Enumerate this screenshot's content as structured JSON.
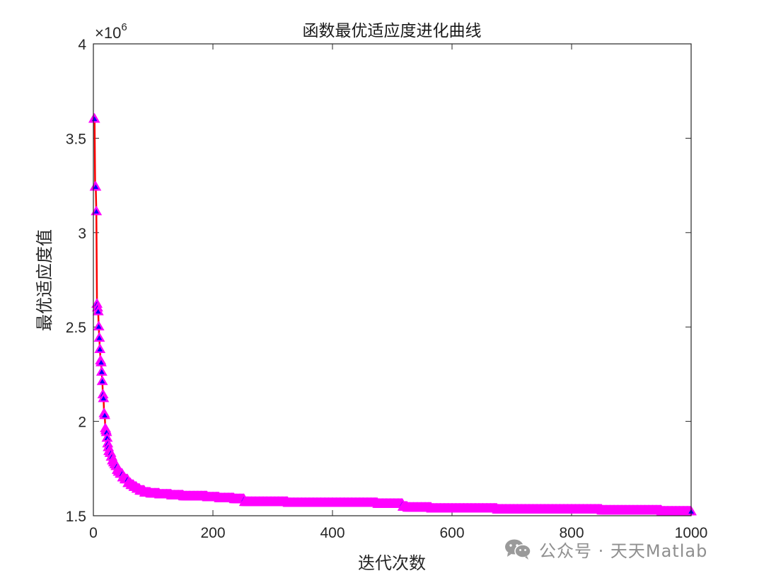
{
  "chart_data": {
    "type": "line",
    "title": "函数最优适应度进化曲线",
    "xlabel": "迭代次数",
    "ylabel": "最优适应度值",
    "exponent_label": "×10^6",
    "exponent_base": "×10",
    "exponent_power": "6",
    "xlim": [
      0,
      1000
    ],
    "ylim": [
      1.5,
      4
    ],
    "xticks": [
      0,
      200,
      400,
      600,
      800,
      1000
    ],
    "xtick_labels": [
      "0",
      "200",
      "400",
      "600",
      "800",
      "1000"
    ],
    "yticks": [
      1.5,
      2,
      2.5,
      3,
      3.5,
      4
    ],
    "ytick_labels": [
      "1.5",
      "2",
      "2.5",
      "3",
      "3.5",
      "4"
    ],
    "grid": false,
    "series": [
      {
        "name": "",
        "line_color": "#ff0000",
        "marker": "triangle",
        "marker_edge_color": "#ff00ff",
        "marker_face_color": "#0000ff",
        "x": [
          1,
          2,
          3,
          4,
          5,
          6,
          7,
          8,
          9,
          10,
          11,
          12,
          13,
          14,
          15,
          16,
          17,
          18,
          19,
          20,
          21,
          22,
          23,
          24,
          25,
          26,
          28,
          30,
          32,
          34,
          36,
          38,
          40,
          43,
          46,
          50,
          55,
          60,
          65,
          70,
          75,
          80,
          90,
          100,
          120,
          140,
          160,
          180,
          200,
          220,
          250,
          255,
          300,
          350,
          400,
          450,
          500,
          515,
          520,
          530,
          600,
          650,
          700,
          800,
          900,
          1000
        ],
        "y": [
          3.6,
          3.6,
          3.24,
          3.24,
          3.11,
          2.62,
          2.6,
          2.58,
          2.5,
          2.44,
          2.38,
          2.32,
          2.31,
          2.26,
          2.21,
          2.14,
          2.12,
          2.04,
          2.03,
          1.96,
          1.95,
          1.94,
          1.91,
          1.88,
          1.86,
          1.84,
          1.83,
          1.81,
          1.79,
          1.78,
          1.77,
          1.76,
          1.74,
          1.73,
          1.72,
          1.7,
          1.69,
          1.67,
          1.66,
          1.65,
          1.64,
          1.63,
          1.62,
          1.615,
          1.61,
          1.605,
          1.6,
          1.6,
          1.595,
          1.59,
          1.585,
          1.57,
          1.57,
          1.565,
          1.565,
          1.565,
          1.56,
          1.56,
          1.545,
          1.54,
          1.535,
          1.535,
          1.53,
          1.53,
          1.525,
          1.52
        ]
      }
    ]
  },
  "watermark": {
    "icon": "wechat-icon",
    "text": "公众号 · 天天Matlab"
  }
}
